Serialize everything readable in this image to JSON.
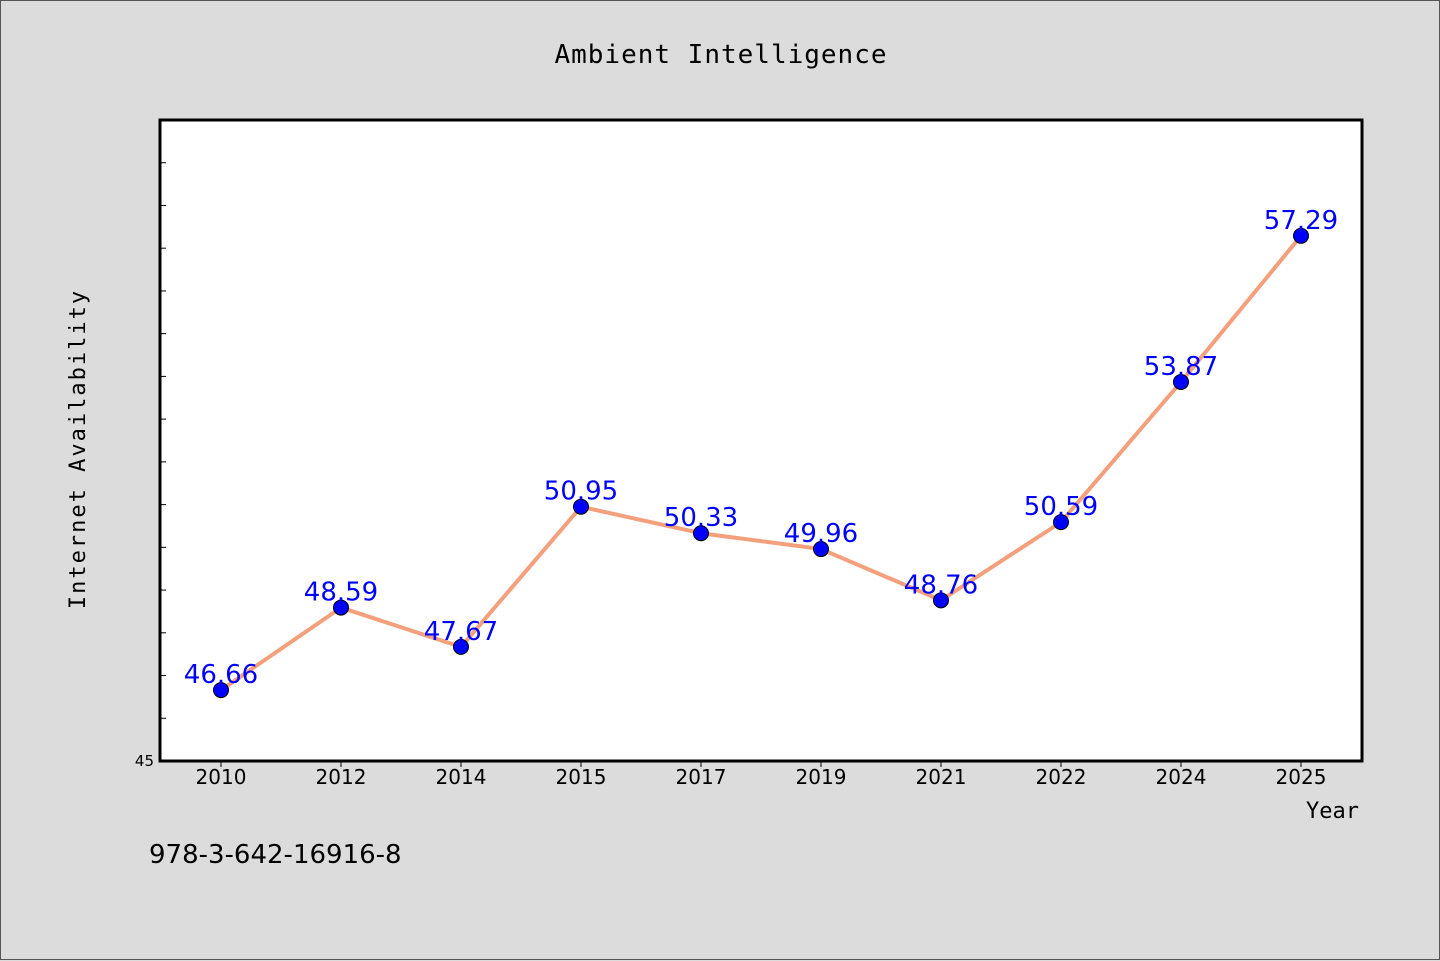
{
  "footer_code": "978-3-642-16916-8",
  "colors": {
    "background": "#dcdcdc",
    "plot_background": "#ffffff",
    "line": "#f4a07c",
    "marker": "#0000ff",
    "data_label": "#0000ff",
    "axis": "#000000"
  },
  "chart_data": {
    "type": "line",
    "title": "Ambient Intelligence",
    "xlabel": "Year",
    "ylabel": "Internet Availability",
    "categories": [
      "2010",
      "2012",
      "2014",
      "2015",
      "2017",
      "2019",
      "2021",
      "2022",
      "2024",
      "2025"
    ],
    "series": [
      {
        "values": [
          46.66,
          48.59,
          47.67,
          50.95,
          50.33,
          49.96,
          48.76,
          50.59,
          53.87,
          57.29
        ],
        "labels": [
          "46.66",
          "48.59",
          "47.67",
          "50.95",
          "50.33",
          "49.96",
          "48.76",
          "50.59",
          "53.87",
          "57.29"
        ]
      }
    ],
    "y_tick_labels": [
      "45"
    ],
    "ylim": [
      45,
      60
    ],
    "y_minor_step": 1,
    "grid": false,
    "legend": "none"
  }
}
